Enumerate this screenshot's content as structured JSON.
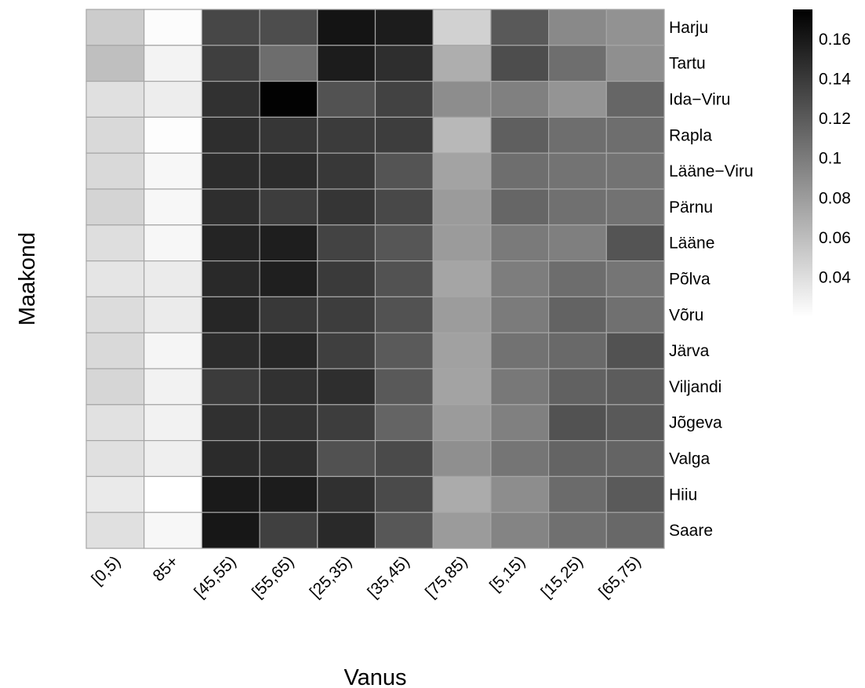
{
  "chart_data": {
    "type": "heatmap",
    "title": "",
    "xlabel": "Vanus",
    "ylabel": "Maakond",
    "x_categories": [
      "[0,5)",
      "85+",
      "[45,55)",
      "[55,65)",
      "[25,35)",
      "[35,45)",
      "[75,85)",
      "[5,15)",
      "[15,25)",
      "[65,75)"
    ],
    "y_categories": [
      "Harju",
      "Tartu",
      "Ida−Viru",
      "Rapla",
      "Lääne−Viru",
      "Pärnu",
      "Lääne",
      "Põlva",
      "Võru",
      "Järva",
      "Viljandi",
      "Jõgeva",
      "Valga",
      "Hiiu",
      "Saare"
    ],
    "values": [
      [
        0.051,
        0.022,
        0.132,
        0.128,
        0.163,
        0.158,
        0.048,
        0.121,
        0.092,
        0.086
      ],
      [
        0.059,
        0.027,
        0.137,
        0.109,
        0.158,
        0.147,
        0.069,
        0.128,
        0.108,
        0.088
      ],
      [
        0.039,
        0.031,
        0.145,
        0.174,
        0.125,
        0.135,
        0.089,
        0.097,
        0.085,
        0.113
      ],
      [
        0.043,
        0.021,
        0.147,
        0.142,
        0.139,
        0.138,
        0.063,
        0.117,
        0.108,
        0.108
      ],
      [
        0.043,
        0.025,
        0.148,
        0.148,
        0.141,
        0.124,
        0.076,
        0.108,
        0.105,
        0.105
      ],
      [
        0.046,
        0.025,
        0.147,
        0.138,
        0.143,
        0.131,
        0.081,
        0.113,
        0.107,
        0.106
      ],
      [
        0.04,
        0.025,
        0.153,
        0.157,
        0.134,
        0.123,
        0.081,
        0.101,
        0.098,
        0.124
      ],
      [
        0.036,
        0.032,
        0.15,
        0.156,
        0.14,
        0.125,
        0.075,
        0.099,
        0.109,
        0.104
      ],
      [
        0.041,
        0.032,
        0.152,
        0.141,
        0.138,
        0.125,
        0.08,
        0.1,
        0.115,
        0.107
      ],
      [
        0.043,
        0.026,
        0.148,
        0.151,
        0.137,
        0.12,
        0.077,
        0.106,
        0.111,
        0.125
      ],
      [
        0.045,
        0.028,
        0.139,
        0.145,
        0.147,
        0.121,
        0.076,
        0.102,
        0.116,
        0.119
      ],
      [
        0.038,
        0.028,
        0.146,
        0.144,
        0.138,
        0.114,
        0.081,
        0.097,
        0.125,
        0.121
      ],
      [
        0.039,
        0.03,
        0.149,
        0.147,
        0.126,
        0.13,
        0.088,
        0.104,
        0.114,
        0.114
      ],
      [
        0.033,
        0.02,
        0.159,
        0.158,
        0.146,
        0.13,
        0.071,
        0.089,
        0.11,
        0.12
      ],
      [
        0.039,
        0.025,
        0.161,
        0.136,
        0.15,
        0.122,
        0.081,
        0.095,
        0.107,
        0.112
      ]
    ],
    "color_scale": {
      "min": 0.02,
      "max": 0.175,
      "low_color": "#ffffff",
      "high_color": "#000000",
      "ticks": [
        0.16,
        0.14,
        0.12,
        0.1,
        0.08,
        0.06,
        0.04
      ],
      "tick_labels": [
        "0.16",
        "0.14",
        "0.12",
        "0.1",
        "0.08",
        "0.06",
        "0.04"
      ]
    },
    "cell_border_color": "#a6a6a6",
    "legend_placement": "right",
    "grid": false
  }
}
